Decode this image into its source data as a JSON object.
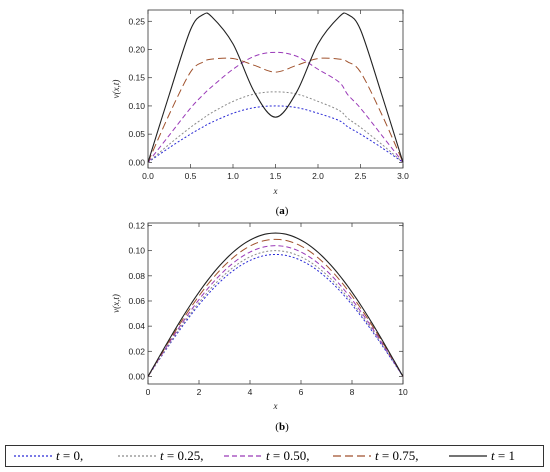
{
  "chart_data": [
    {
      "type": "line",
      "panel_label": "(a)",
      "xlabel": "x",
      "ylabel": "v(x,t)",
      "xlim": [
        0,
        3
      ],
      "ylim": [
        -0.01,
        0.27
      ],
      "xticks": [
        "0.0",
        "0.5",
        "1.0",
        "1.5",
        "2.0",
        "2.5",
        "3.0"
      ],
      "yticks": [
        "0.00",
        "0.05",
        "0.10",
        "0.15",
        "0.20",
        "0.25"
      ],
      "x": [
        0,
        0.25,
        0.5,
        0.65,
        0.75,
        1.0,
        1.25,
        1.5,
        1.75,
        2.0,
        2.25,
        2.35,
        2.5,
        2.75,
        3.0
      ],
      "series": [
        {
          "t": "0",
          "color": "#2a2ad6",
          "values": [
            0,
            0.026,
            0.05,
            0.063,
            0.071,
            0.087,
            0.097,
            0.1,
            0.097,
            0.087,
            0.074,
            0.063,
            0.05,
            0.026,
            0
          ]
        },
        {
          "t": "0.25",
          "color": "#8a8a8a",
          "values": [
            0,
            0.032,
            0.062,
            0.078,
            0.088,
            0.108,
            0.121,
            0.125,
            0.121,
            0.108,
            0.092,
            0.078,
            0.062,
            0.032,
            0
          ]
        },
        {
          "t": "0.50",
          "color": "#9a3ab8",
          "values": [
            0,
            0.048,
            0.096,
            0.12,
            0.134,
            0.165,
            0.188,
            0.195,
            0.188,
            0.165,
            0.142,
            0.12,
            0.096,
            0.048,
            0
          ]
        },
        {
          "t": "0.75",
          "color": "#a0522d",
          "values": [
            0,
            0.085,
            0.16,
            0.178,
            0.183,
            0.184,
            0.172,
            0.16,
            0.172,
            0.184,
            0.183,
            0.178,
            0.16,
            0.085,
            0
          ]
        },
        {
          "t": "1",
          "color": "#222222",
          "values": [
            0,
            0.12,
            0.235,
            0.262,
            0.258,
            0.21,
            0.125,
            0.08,
            0.125,
            0.21,
            0.258,
            0.262,
            0.235,
            0.12,
            0
          ]
        }
      ]
    },
    {
      "type": "line",
      "panel_label": "(b)",
      "xlabel": "x",
      "ylabel": "v(x,t)",
      "xlim": [
        0,
        10
      ],
      "ylim": [
        -0.006,
        0.122
      ],
      "xticks": [
        "0",
        "2",
        "4",
        "6",
        "8",
        "10"
      ],
      "yticks": [
        "0.00",
        "0.02",
        "0.04",
        "0.06",
        "0.08",
        "0.10",
        "0.12"
      ],
      "x": [
        0,
        1,
        2,
        3,
        4,
        5,
        6,
        7,
        8,
        9,
        10
      ],
      "series": [
        {
          "t": "0",
          "color": "#2a2ad6",
          "peak": 0.097
        },
        {
          "t": "0.25",
          "color": "#8a8a8a",
          "peak": 0.1
        },
        {
          "t": "0.50",
          "color": "#9a3ab8",
          "peak": 0.104
        },
        {
          "t": "0.75",
          "color": "#a0522d",
          "peak": 0.109
        },
        {
          "t": "1",
          "color": "#222222",
          "peak": 0.114
        }
      ]
    }
  ],
  "legend": [
    {
      "var": "t",
      "text": " = 0,",
      "color": "#2a2ad6",
      "dash": "dot"
    },
    {
      "var": "t",
      "text": " = 0.25,",
      "color": "#8a8a8a",
      "dash": "dot"
    },
    {
      "var": "t",
      "text": " = 0.50,",
      "color": "#9a3ab8",
      "dash": "dash"
    },
    {
      "var": "t",
      "text": " = 0.75,",
      "color": "#a0522d",
      "dash": "longdash"
    },
    {
      "var": "t",
      "text": " = 1",
      "color": "#222222",
      "dash": "solid"
    }
  ]
}
